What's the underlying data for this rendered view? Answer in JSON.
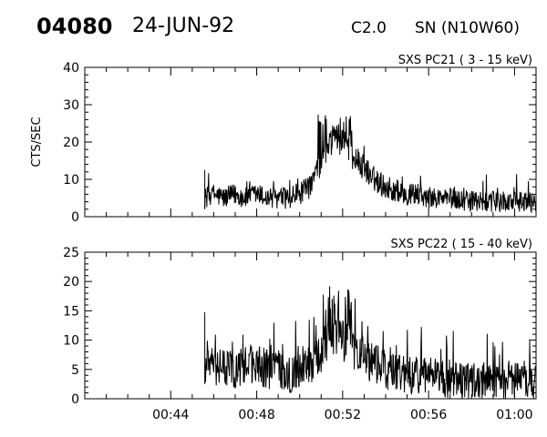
{
  "header": {
    "event_id": "04080",
    "date": "24-JUN-92",
    "flare_class": "C2.0",
    "location": "SN (N10W60)"
  },
  "chart_data": [
    {
      "type": "line",
      "title": "SXS PC21  (  3 - 15 keV)",
      "ylabel": "CTS/SEC",
      "xlabel": "",
      "x_units": "UT (hh:mm)",
      "xlim": [
        "00:40:00",
        "01:01:00"
      ],
      "ylim": [
        0,
        40
      ],
      "yticks": [
        0,
        10,
        20,
        30,
        40
      ],
      "xticks": [],
      "grid": false,
      "data_start": "00:45:35",
      "data_end": "01:01:00",
      "points": [
        [
          "00:45:35",
          5
        ],
        [
          "00:46:00",
          6
        ],
        [
          "00:46:30",
          5
        ],
        [
          "00:47:00",
          6
        ],
        [
          "00:47:30",
          5
        ],
        [
          "00:48:00",
          6
        ],
        [
          "00:48:30",
          5
        ],
        [
          "00:49:00",
          5
        ],
        [
          "00:49:30",
          5
        ],
        [
          "00:50:00",
          6
        ],
        [
          "00:50:30",
          8
        ],
        [
          "00:51:00",
          15
        ],
        [
          "00:51:15",
          18
        ],
        [
          "00:51:30",
          20
        ],
        [
          "00:51:45",
          21
        ],
        [
          "00:52:00",
          20
        ],
        [
          "00:52:15",
          19
        ],
        [
          "00:52:30",
          16
        ],
        [
          "00:53:00",
          13
        ],
        [
          "00:53:30",
          10
        ],
        [
          "00:54:00",
          8
        ],
        [
          "00:54:30",
          7
        ],
        [
          "00:55:00",
          6
        ],
        [
          "00:55:30",
          6
        ],
        [
          "00:56:00",
          5
        ],
        [
          "00:57:00",
          5
        ],
        [
          "00:58:00",
          4
        ],
        [
          "00:59:00",
          4
        ],
        [
          "01:00:00",
          4
        ],
        [
          "01:01:00",
          4
        ]
      ],
      "noise_amplitude": 3,
      "peak_max": 28,
      "peak_time": "00:51:40"
    },
    {
      "type": "line",
      "title": "SXS PC22  ( 15 - 40 keV)",
      "ylabel": "",
      "xlabel": "",
      "x_units": "UT (hh:mm)",
      "xlim": [
        "00:40:00",
        "01:01:00"
      ],
      "ylim": [
        0,
        25
      ],
      "yticks": [
        0,
        5,
        10,
        15,
        20,
        25
      ],
      "xticks": [
        "00:44",
        "00:48",
        "00:52",
        "00:56",
        "01:00"
      ],
      "grid": false,
      "data_start": "00:45:35",
      "data_end": "01:01:00",
      "points": [
        [
          "00:45:35",
          6
        ],
        [
          "00:46:00",
          6
        ],
        [
          "00:46:30",
          5
        ],
        [
          "00:47:00",
          5
        ],
        [
          "00:47:30",
          6
        ],
        [
          "00:48:00",
          6
        ],
        [
          "00:48:30",
          5
        ],
        [
          "00:49:00",
          5
        ],
        [
          "00:49:30",
          4
        ],
        [
          "00:50:00",
          5
        ],
        [
          "00:50:30",
          6
        ],
        [
          "00:51:00",
          8
        ],
        [
          "00:51:20",
          10
        ],
        [
          "00:51:40",
          11
        ],
        [
          "00:52:00",
          10
        ],
        [
          "00:52:20",
          9
        ],
        [
          "00:52:40",
          8
        ],
        [
          "00:53:00",
          7
        ],
        [
          "00:53:30",
          6
        ],
        [
          "00:54:00",
          5
        ],
        [
          "00:55:00",
          4
        ],
        [
          "00:56:00",
          4
        ],
        [
          "00:57:00",
          3
        ],
        [
          "00:58:00",
          3
        ],
        [
          "00:59:00",
          3
        ],
        [
          "01:00:00",
          3
        ],
        [
          "01:01:00",
          3
        ]
      ],
      "noise_amplitude": 3.5,
      "peak_max": 19,
      "peak_time": "00:51:50"
    }
  ]
}
